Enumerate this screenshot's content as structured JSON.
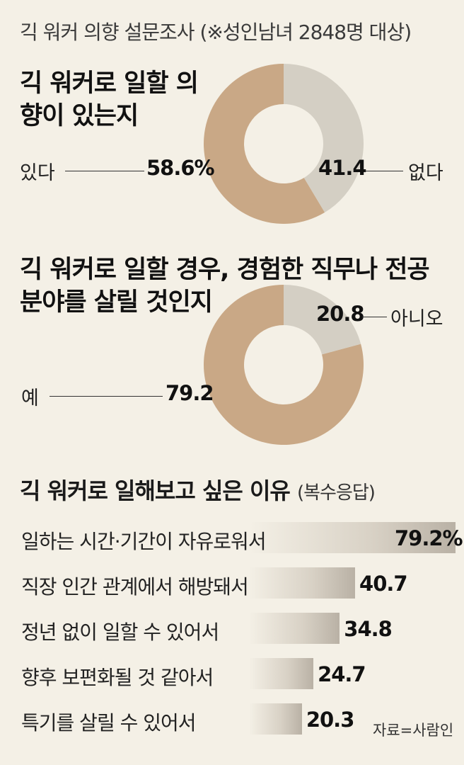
{
  "header": "긱 워커 의향 설문조사 (※성인남녀 2848명 대상)",
  "chart_data": [
    {
      "type": "pie",
      "title": "긱 워커로 일할 의향이 있는지",
      "slices": [
        {
          "label": "있다",
          "value": 58.6,
          "value_text": "58.6%",
          "color": "#c9a886"
        },
        {
          "label": "없다",
          "value": 41.4,
          "value_text": "41.4",
          "color": "#d4cfc4"
        }
      ]
    },
    {
      "type": "pie",
      "title": "긱 워커로 일할 경우, 경험한 직무나 전공 분야를 살릴 것인지",
      "slices": [
        {
          "label": "예",
          "value": 79.2,
          "value_text": "79.2",
          "color": "#c9a886"
        },
        {
          "label": "아니오",
          "value": 20.8,
          "value_text": "20.8",
          "color": "#d4cfc4"
        }
      ]
    },
    {
      "type": "bar",
      "title": "긱 워커로 일해보고 싶은 이유",
      "subtitle": "(복수응답)",
      "categories": [
        "일하는 시간·기간이 자유로워서",
        "직장 인간 관계에서 해방돼서",
        "정년 없이 일할 수 있어서",
        "향후 보편화될 것 같아서",
        "특기를 살릴 수 있어서"
      ],
      "values": [
        79.2,
        40.7,
        34.8,
        24.7,
        20.3
      ],
      "value_texts": [
        "79.2%",
        "40.7",
        "34.8",
        "24.7",
        "20.3"
      ]
    }
  ],
  "source": "자료=사람인"
}
